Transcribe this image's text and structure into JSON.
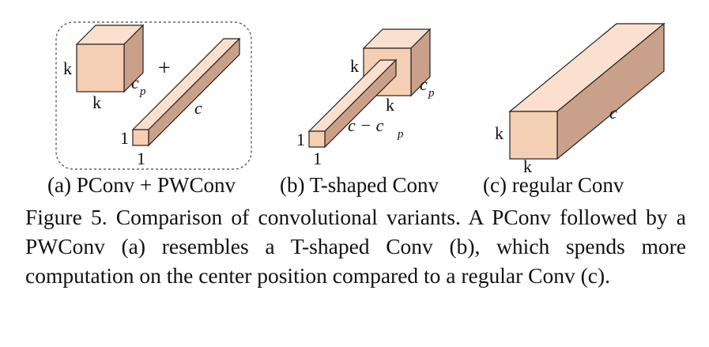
{
  "panels": [
    {
      "caption": "(a) PConv + PWConv",
      "plus": "+",
      "cube_labels": {
        "height": "k",
        "width": "k",
        "depth": "c",
        "depth_sub": "p"
      },
      "bar_labels": {
        "height": "1",
        "width": "1",
        "length": "c"
      }
    },
    {
      "caption": "(b) T-shaped Conv",
      "cube_labels": {
        "height": "k",
        "width": "k",
        "depth": "c",
        "depth_sub": "p"
      },
      "bar_labels": {
        "height": "1",
        "width": "1",
        "length": "c − c",
        "length_sub": "p"
      }
    },
    {
      "caption": "(c) regular Conv",
      "box_labels": {
        "height": "k",
        "width": "k",
        "length": "c"
      }
    }
  ],
  "caption": "Figure 5.  Comparison of convolutional variants.  A PConv followed by a PWConv (a) resembles a T-shaped Conv (b), which spends more computation on the center position compared to a regular Conv (c).",
  "colors": {
    "front": "#f5cfb4",
    "top": "#fbe0cd",
    "side": "#c9a089",
    "stroke": "#222222",
    "dash": "#444444"
  }
}
